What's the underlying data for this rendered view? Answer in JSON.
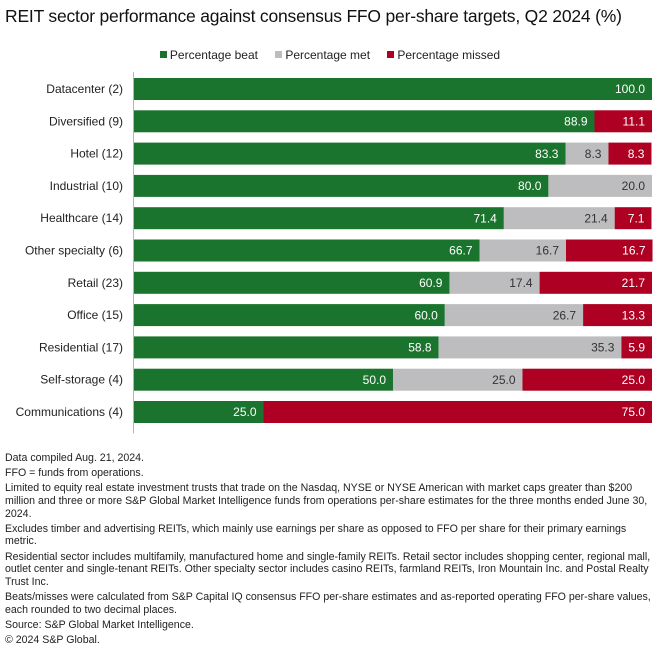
{
  "title": "REIT sector performance against consensus FFO per-share targets, Q2 2024 (%)",
  "legend": [
    {
      "label": "Percentage beat",
      "color": "#1b742d"
    },
    {
      "label": "Percentage met",
      "color": "#bdbdbf"
    },
    {
      "label": "Percentage missed",
      "color": "#ad0022"
    }
  ],
  "chart_data": {
    "type": "bar",
    "orientation": "horizontal",
    "stacked": true,
    "title": "REIT sector performance against consensus FFO per-share targets, Q2 2024 (%)",
    "xlabel": "",
    "ylabel": "",
    "xlim": [
      0,
      100
    ],
    "grid": false,
    "legend_position": "top-center",
    "categories": [
      "Datacenter (2)",
      "Diversified (9)",
      "Hotel (12)",
      "Industrial (10)",
      "Healthcare (14)",
      "Other specialty (6)",
      "Retail (23)",
      "Office (15)",
      "Residential (17)",
      "Self-storage (4)",
      "Communications (4)"
    ],
    "series": [
      {
        "name": "Percentage beat",
        "color": "#1b742d",
        "label_color": "#ffffff",
        "values": [
          100.0,
          88.9,
          83.3,
          80.0,
          71.4,
          66.7,
          60.9,
          60.0,
          58.8,
          50.0,
          25.0
        ]
      },
      {
        "name": "Percentage met",
        "color": "#bdbdbf",
        "label_color": "#333333",
        "values": [
          0,
          0,
          8.3,
          20.0,
          21.4,
          16.7,
          17.4,
          26.7,
          35.3,
          25.0,
          0
        ]
      },
      {
        "name": "Percentage missed",
        "color": "#ad0022",
        "label_color": "#ffffff",
        "values": [
          0,
          11.1,
          8.3,
          0,
          7.1,
          16.7,
          21.7,
          13.3,
          5.9,
          25.0,
          75.0
        ]
      }
    ]
  },
  "notes": [
    "Data compiled Aug. 21, 2024.",
    "FFO = funds from operations.",
    "Limited to equity real estate investment trusts that trade on the Nasdaq, NYSE or NYSE American with market caps greater than $200 million and three or more S&P Global Market Intelligence funds from operations per-share estimates for the three months ended June 30, 2024.",
    "Excludes timber and advertising REITs, which mainly use earnings per share as opposed to FFO per share for their primary earnings metric.",
    "Residential sector includes multifamily, manufactured home and single-family REITs. Retail sector includes shopping center, regional mall, outlet center and single-tenant REITs. Other specialty sector includes casino REITs, farmland REITs, Iron Mountain Inc. and Postal Realty Trust Inc.",
    "Beats/misses were calculated from S&P Capital IQ consensus FFO per-share estimates and as-reported operating FFO per-share values, each rounded to two decimal places.",
    "Source: S&P Global Market Intelligence.",
    "© 2024 S&P Global."
  ]
}
